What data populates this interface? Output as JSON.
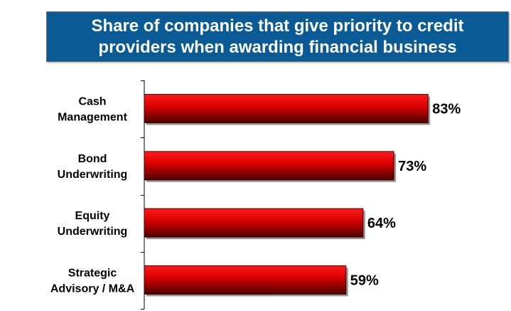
{
  "chart_data": {
    "type": "bar",
    "orientation": "horizontal",
    "title": "Share of companies that give priority to credit\nproviders when awarding financial business",
    "categories": [
      [
        "Cash",
        "Management"
      ],
      [
        "Bond",
        "Underwriting"
      ],
      [
        "Equity",
        "Underwriting"
      ],
      [
        "Strategic",
        "Advisory / M&A"
      ]
    ],
    "values": [
      83,
      73,
      64,
      59
    ],
    "data_labels": [
      "83%",
      "73%",
      "64%",
      "59%"
    ],
    "xlim": [
      0,
      100
    ],
    "grid": false,
    "legend": "none",
    "colors": {
      "title_background": "#0a5a96",
      "title_text": "#ffffff",
      "bar_top": "#ff1a1a",
      "bar_mid": "#d40000",
      "bar_bottom": "#4a0000",
      "bar_border": "#3a0000",
      "axis": "#000000"
    }
  }
}
